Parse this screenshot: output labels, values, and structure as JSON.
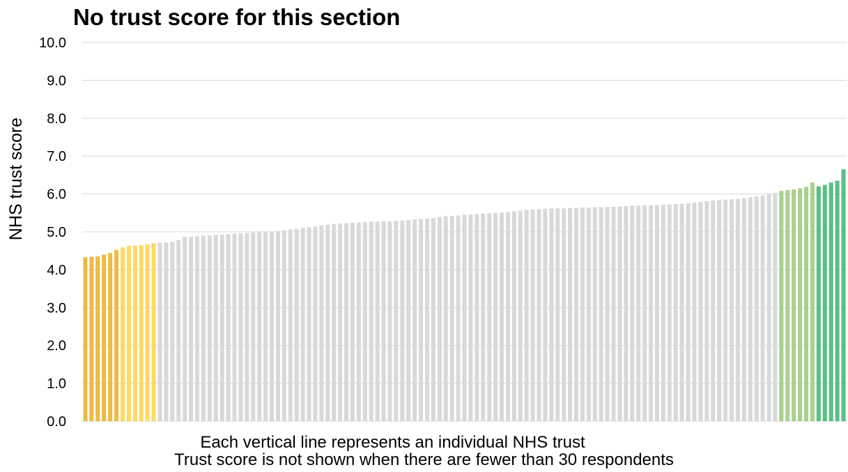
{
  "chart_data": {
    "type": "bar",
    "title": "No trust score for this section",
    "ylabel": "NHS trust score",
    "xlabel": "",
    "ylim": [
      0,
      10
    ],
    "yticks": [
      "0.0",
      "1.0",
      "2.0",
      "3.0",
      "4.0",
      "5.0",
      "6.0",
      "7.0",
      "8.0",
      "9.0",
      "10.0"
    ],
    "grid": true,
    "legend": "none",
    "notes": [
      "Each vertical line represents an individual NHS trust",
      "Trust score is not shown when there are fewer than 30 respondents"
    ],
    "colors": {
      "bottom_dark": "#EDBB45",
      "bottom_light": "#FFD966",
      "middle": "#D9D9D9",
      "top_light": "#A9D18E",
      "top_dark": "#5BBF84",
      "gridline": "#D9D9D9"
    },
    "series": [
      {
        "values": [
          4.33,
          4.34,
          4.35,
          4.4,
          4.44,
          4.52,
          4.59,
          4.63,
          4.64,
          4.65,
          4.67,
          4.7,
          4.71,
          4.72,
          4.74,
          4.78,
          4.87,
          4.87,
          4.88,
          4.9,
          4.91,
          4.92,
          4.92,
          4.94,
          4.95,
          4.96,
          4.97,
          4.98,
          4.99,
          5.0,
          5.01,
          5.02,
          5.04,
          5.06,
          5.08,
          5.1,
          5.12,
          5.14,
          5.17,
          5.19,
          5.21,
          5.22,
          5.23,
          5.24,
          5.25,
          5.26,
          5.27,
          5.27,
          5.28,
          5.28,
          5.29,
          5.3,
          5.31,
          5.33,
          5.34,
          5.35,
          5.36,
          5.39,
          5.41,
          5.42,
          5.43,
          5.45,
          5.46,
          5.47,
          5.48,
          5.49,
          5.5,
          5.51,
          5.52,
          5.54,
          5.56,
          5.58,
          5.59,
          5.6,
          5.61,
          5.62,
          5.62,
          5.62,
          5.63,
          5.63,
          5.64,
          5.64,
          5.65,
          5.65,
          5.66,
          5.66,
          5.67,
          5.68,
          5.69,
          5.69,
          5.7,
          5.7,
          5.71,
          5.72,
          5.72,
          5.73,
          5.74,
          5.75,
          5.77,
          5.79,
          5.81,
          5.83,
          5.84,
          5.85,
          5.86,
          5.87,
          5.89,
          5.91,
          5.93,
          5.96,
          5.99,
          6.03,
          6.08,
          6.1,
          6.12,
          6.15,
          6.19,
          6.3,
          6.2,
          6.24,
          6.3,
          6.35,
          6.65
        ],
        "groups": {
          "bottom_dark": [
            0,
            6
          ],
          "bottom_light": [
            6,
            12
          ],
          "middle": [
            12,
            112
          ],
          "top_light": [
            112,
            118
          ],
          "top_dark": [
            118,
            124
          ]
        }
      }
    ]
  }
}
